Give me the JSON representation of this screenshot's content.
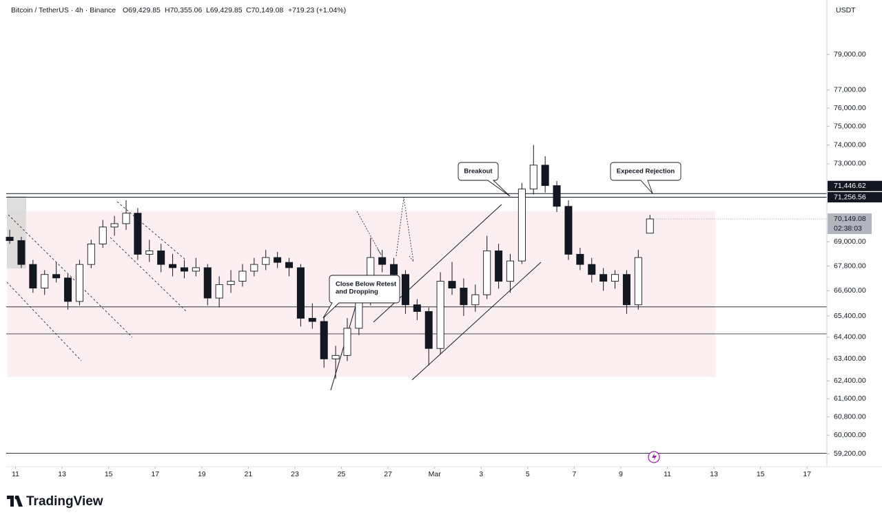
{
  "chart_data": {
    "type": "candlestick",
    "title": "Bitcoin / TetherUS · 4h · Binance",
    "ohlc_labels": [
      "O69,429.85",
      "H70,355.06",
      "L69,429.85",
      "C70,149.08"
    ],
    "change_label": "+719.23 (+1.04%)",
    "currency": "USDT",
    "brand": "TradingView",
    "log_scale": true,
    "grid": false,
    "colors": {
      "up": "#ffffff",
      "down": "#131722",
      "outline": "#131722",
      "zone": "#fbeaec",
      "level_label": "#131722",
      "last_label": "#b2b5be"
    },
    "x": [
      -0.25,
      0.25,
      0.75,
      1.25,
      1.75,
      2.25,
      2.75,
      3.25,
      3.75,
      4.25,
      4.75,
      5.25,
      5.75,
      6.25,
      6.75,
      7.25,
      7.75,
      8.25,
      8.75,
      9.25,
      9.75,
      10.25,
      10.75,
      11.25,
      11.75,
      12.25,
      12.75,
      13.25,
      13.75,
      14.25,
      14.75,
      15.25,
      15.75,
      16.25,
      16.75,
      17.25,
      17.75,
      18.25,
      18.75,
      19.25,
      19.75,
      20.25,
      20.75,
      21.25,
      21.75,
      22.25,
      22.75,
      23.25,
      23.75,
      24.25,
      24.75,
      25.25,
      25.75,
      26.25,
      26.75,
      27.25
    ],
    "open": [
      69230,
      69060,
      67880,
      66730,
      67390,
      67220,
      66090,
      67880,
      68890,
      69740,
      69910,
      70440,
      68380,
      68550,
      67880,
      67720,
      67550,
      67720,
      66250,
      66900,
      67060,
      67550,
      67880,
      68220,
      67980,
      67720,
      65290,
      65140,
      63400,
      63560,
      64820,
      66090,
      68220,
      67880,
      67390,
      65930,
      65610,
      63880,
      67060,
      66730,
      65930,
      66410,
      68550,
      67060,
      68050,
      71680,
      72930,
      71860,
      70790,
      68380,
      67880,
      67390,
      67060,
      67390,
      65930,
      69429.85
    ],
    "high": [
      69600,
      69250,
      68100,
      67600,
      68000,
      67400,
      68100,
      69100,
      70100,
      70300,
      71100,
      70700,
      69100,
      68900,
      68400,
      68100,
      68200,
      67900,
      67300,
      67600,
      67900,
      68200,
      68600,
      68500,
      68200,
      67900,
      66000,
      65400,
      64000,
      65300,
      66500,
      69200,
      68600,
      68200,
      67600,
      66200,
      65800,
      67500,
      68000,
      67200,
      66900,
      69300,
      68900,
      68400,
      72000,
      74000,
      73400,
      72100,
      71100,
      68700,
      68200,
      67700,
      67600,
      67600,
      68600,
      70355.06
    ],
    "low": [
      68900,
      67700,
      66500,
      66400,
      67000,
      65700,
      65900,
      67700,
      68700,
      69300,
      69600,
      68100,
      68000,
      67500,
      67300,
      67200,
      67300,
      65900,
      65800,
      66500,
      66800,
      67300,
      67600,
      67700,
      67300,
      64900,
      64800,
      63000,
      62500,
      63300,
      64500,
      65900,
      67500,
      67100,
      65500,
      65200,
      63100,
      63600,
      66400,
      65400,
      65600,
      66200,
      66700,
      66500,
      67900,
      71400,
      71500,
      70500,
      68100,
      67600,
      67000,
      66600,
      66700,
      65500,
      65700,
      69429.85
    ],
    "close": [
      69060,
      67880,
      66730,
      67390,
      67220,
      66090,
      67880,
      68890,
      69740,
      69910,
      70440,
      68380,
      68550,
      67880,
      67720,
      67550,
      67720,
      66250,
      66900,
      67060,
      67550,
      67880,
      68220,
      67980,
      67720,
      65290,
      65140,
      63400,
      63560,
      64820,
      66090,
      68220,
      67880,
      67390,
      65930,
      65610,
      63880,
      67060,
      66730,
      65930,
      66410,
      68550,
      67060,
      68050,
      71680,
      72930,
      71860,
      70790,
      68380,
      67880,
      67390,
      67060,
      67390,
      65930,
      68220,
      70149.08
    ],
    "xlim": [
      -0.4,
      34.85
    ],
    "xticks": [
      {
        "value": 0,
        "label": "11"
      },
      {
        "value": 2,
        "label": "13"
      },
      {
        "value": 4,
        "label": "15"
      },
      {
        "value": 6,
        "label": "17"
      },
      {
        "value": 8,
        "label": "19"
      },
      {
        "value": 10,
        "label": "21"
      },
      {
        "value": 12,
        "label": "23"
      },
      {
        "value": 14,
        "label": "25"
      },
      {
        "value": 16,
        "label": "27"
      },
      {
        "value": 18,
        "label": "Mar"
      },
      {
        "value": 20,
        "label": "3"
      },
      {
        "value": 22,
        "label": "5"
      },
      {
        "value": 24,
        "label": "7"
      },
      {
        "value": 26,
        "label": "9"
      },
      {
        "value": 28,
        "label": "11"
      },
      {
        "value": 30,
        "label": "13"
      },
      {
        "value": 32,
        "label": "15"
      },
      {
        "value": 34,
        "label": "17"
      }
    ],
    "ylim": [
      58650,
      82050
    ],
    "yticks": [
      {
        "value": 79000,
        "label": "79,000.00"
      },
      {
        "value": 77000,
        "label": "77,000.00"
      },
      {
        "value": 76000,
        "label": "76,000.00"
      },
      {
        "value": 75000,
        "label": "75,000.00"
      },
      {
        "value": 74000,
        "label": "74,000.00"
      },
      {
        "value": 73000,
        "label": "73,000.00"
      },
      {
        "value": 69000,
        "label": "69,000.00"
      },
      {
        "value": 67800,
        "label": "67,800.00"
      },
      {
        "value": 66600,
        "label": "66,600.00"
      },
      {
        "value": 65400,
        "label": "65,400.00"
      },
      {
        "value": 64400,
        "label": "64,400.00"
      },
      {
        "value": 63400,
        "label": "63,400.00"
      },
      {
        "value": 62400,
        "label": "62,400.00"
      },
      {
        "value": 61600,
        "label": "61,600.00"
      },
      {
        "value": 60800,
        "label": "60,800.00"
      },
      {
        "value": 60000,
        "label": "60,000.00"
      },
      {
        "value": 59200,
        "label": "59,200.00"
      }
    ],
    "levels": [
      {
        "value": 71446.62,
        "label": "71,446.62"
      },
      {
        "value": 71256.56,
        "label": "71,256.56"
      }
    ],
    "last_price": {
      "value": 70149.08,
      "label": "70,149.08"
    },
    "countdown": "02:38:03",
    "hlines": [
      65830,
      64560,
      59220
    ],
    "zone": {
      "x": [
        -0.35,
        30.05
      ],
      "y": [
        62580,
        70540
      ]
    },
    "annotations": [
      {
        "text": [
          "Breakout"
        ]
      },
      {
        "text": [
          "Expeced Rejection"
        ]
      },
      {
        "text": [
          "Close Below Retest",
          "and Dropping"
        ]
      }
    ]
  }
}
